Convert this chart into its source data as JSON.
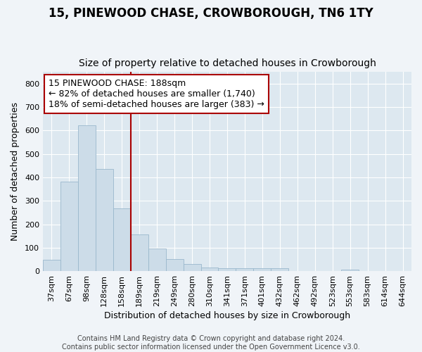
{
  "title": "15, PINEWOOD CHASE, CROWBOROUGH, TN6 1TY",
  "subtitle": "Size of property relative to detached houses in Crowborough",
  "xlabel": "Distribution of detached houses by size in Crowborough",
  "ylabel": "Number of detached properties",
  "categories": [
    "37sqm",
    "67sqm",
    "98sqm",
    "128sqm",
    "158sqm",
    "189sqm",
    "219sqm",
    "249sqm",
    "280sqm",
    "310sqm",
    "341sqm",
    "371sqm",
    "401sqm",
    "432sqm",
    "462sqm",
    "492sqm",
    "523sqm",
    "553sqm",
    "583sqm",
    "614sqm",
    "644sqm"
  ],
  "values": [
    47,
    383,
    623,
    437,
    268,
    158,
    95,
    52,
    30,
    16,
    11,
    11,
    13,
    11,
    0,
    0,
    0,
    5,
    0,
    0,
    0
  ],
  "bar_color": "#ccdce8",
  "bar_edgecolor": "#9ab8cc",
  "vline_index": 5,
  "vline_color": "#aa0000",
  "annotation_line1": "15 PINEWOOD CHASE: 188sqm",
  "annotation_line2": "← 82% of detached houses are smaller (1,740)",
  "annotation_line3": "18% of semi-detached houses are larger (383) →",
  "annotation_box_facecolor": "#ffffff",
  "annotation_box_edgecolor": "#aa0000",
  "ylim": [
    0,
    850
  ],
  "yticks": [
    0,
    100,
    200,
    300,
    400,
    500,
    600,
    700,
    800
  ],
  "footer1": "Contains HM Land Registry data © Crown copyright and database right 2024.",
  "footer2": "Contains public sector information licensed under the Open Government Licence v3.0.",
  "fig_facecolor": "#f0f4f8",
  "ax_facecolor": "#dde8f0",
  "grid_color": "#ffffff",
  "title_fontsize": 12,
  "subtitle_fontsize": 10,
  "axis_label_fontsize": 9,
  "tick_fontsize": 8,
  "footer_fontsize": 7,
  "annot_fontsize": 9
}
